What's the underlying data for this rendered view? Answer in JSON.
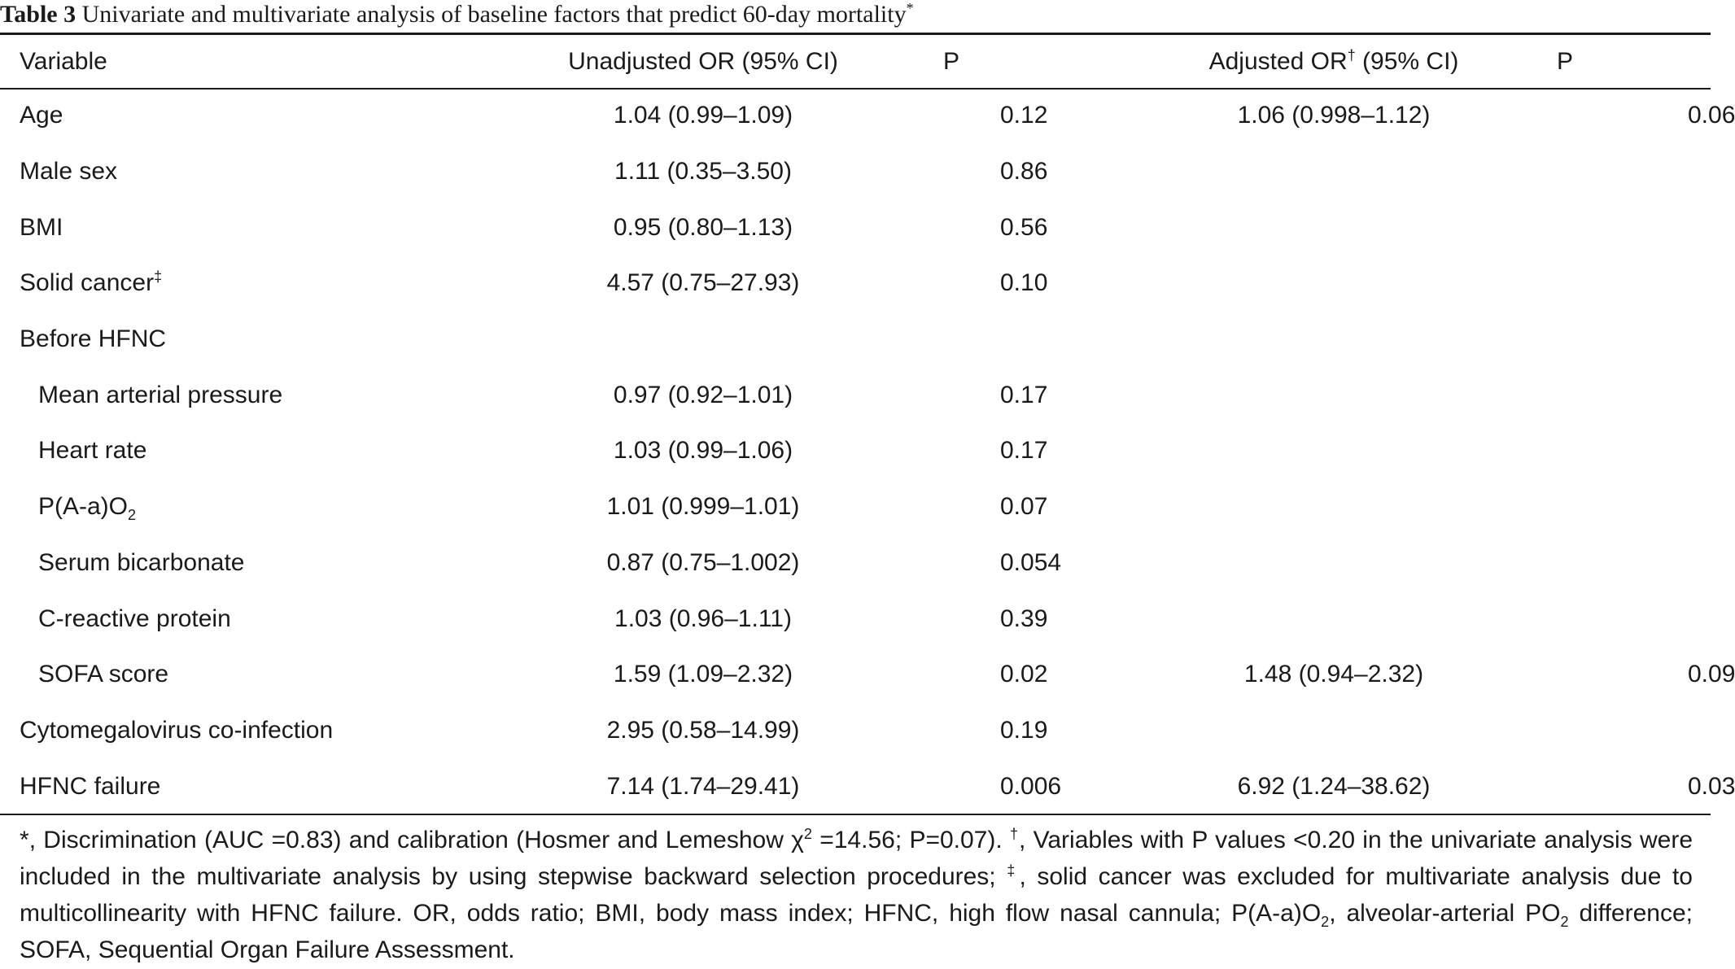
{
  "caption": {
    "label": "Table 3",
    "text": "Univariate and multivariate analysis of baseline factors that predict 60-day mortality",
    "mark": "*"
  },
  "header": {
    "variable": "Variable",
    "unadjusted_or": "Unadjusted OR (95% CI)",
    "p1": "P",
    "adjusted_or_prefix": "Adjusted OR",
    "adjusted_or_mark": "†",
    "adjusted_or_suffix": " (95% CI)",
    "p2": "P"
  },
  "rows": [
    {
      "variable": "Age",
      "unadjusted_or": "1.04 (0.99–1.09)",
      "p1": "0.12",
      "adjusted_or": "1.06 (0.998–1.12)",
      "p2": "0.06"
    },
    {
      "variable": "Male sex",
      "unadjusted_or": "1.11 (0.35–3.50)",
      "p1": "0.86",
      "adjusted_or": "",
      "p2": ""
    },
    {
      "variable": "BMI",
      "unadjusted_or": "0.95 (0.80–1.13)",
      "p1": "0.56",
      "adjusted_or": "",
      "p2": ""
    },
    {
      "variable": "Solid cancer",
      "mark": "‡",
      "unadjusted_or": "4.57 (0.75–27.93)",
      "p1": "0.10",
      "adjusted_or": "",
      "p2": ""
    },
    {
      "variable": "Before HFNC",
      "unadjusted_or": "",
      "p1": "",
      "adjusted_or": "",
      "p2": ""
    },
    {
      "variable": "Mean arterial pressure",
      "unadjusted_or": "0.97 (0.92–1.01)",
      "p1": "0.17",
      "adjusted_or": "",
      "p2": ""
    },
    {
      "variable": "Heart rate",
      "unadjusted_or": "1.03 (0.99–1.06)",
      "p1": "0.17",
      "adjusted_or": "",
      "p2": ""
    },
    {
      "variable": "P(A-a)O",
      "sub": "2",
      "unadjusted_or": "1.01 (0.999–1.01)",
      "p1": "0.07",
      "adjusted_or": "",
      "p2": ""
    },
    {
      "variable": "Serum bicarbonate",
      "unadjusted_or": "0.87 (0.75–1.002)",
      "p1": "0.054",
      "adjusted_or": "",
      "p2": ""
    },
    {
      "variable": "C-reactive protein",
      "unadjusted_or": "1.03 (0.96–1.11)",
      "p1": "0.39",
      "adjusted_or": "",
      "p2": ""
    },
    {
      "variable": "SOFA score",
      "unadjusted_or": "1.59 (1.09–2.32)",
      "p1": "0.02",
      "adjusted_or": "1.48 (0.94–2.32)",
      "p2": "0.09"
    },
    {
      "variable": "Cytomegalovirus co-infection",
      "unadjusted_or": "2.95 (0.58–14.99)",
      "p1": "0.19",
      "adjusted_or": "",
      "p2": ""
    },
    {
      "variable": "HFNC failure",
      "unadjusted_or": "7.14 (1.74–29.41)",
      "p1": "0.006",
      "adjusted_or": "6.92 (1.24–38.62)",
      "p2": "0.03"
    }
  ],
  "footnote": {
    "f1_mark": "*",
    "f1_a": ", Discrimination (AUC =0.83) and calibration (Hosmer and Lemeshow χ",
    "f1_sup": "2",
    "f1_b": " =14.56; P=0.07). ",
    "f2_mark": "†",
    "f2": ", Variables with P values <0.20 in the univariate analysis were included in the multivariate analysis by using stepwise backward selection procedures; ",
    "f3_mark": "‡",
    "f3": ", solid cancer was excluded for multivariate analysis due to multicollinearity with HFNC failure. OR, odds ratio; BMI, body mass index; HFNC, high flow nasal cannula; ",
    "f4_a": "P(A-a)O",
    "f4_sub": "2",
    "f4_b": ", alveolar-arterial PO",
    "f4_sub2": "2",
    "f4_c": " difference; SOFA, Sequential Organ Failure Assessment."
  }
}
